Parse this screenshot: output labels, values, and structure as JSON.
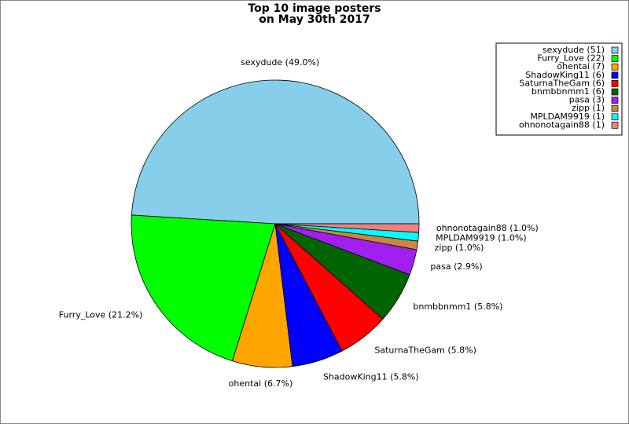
{
  "chart_data": {
    "type": "pie",
    "title": "Top 10 image posters",
    "subtitle": "on May 30th 2017",
    "categories": [
      "sexydude",
      "Furry_Love",
      "ohentai",
      "ShadowKing11",
      "SaturnaTheGam",
      "bnmbbnmm1",
      "pasa",
      "zipp",
      "MPLDAM9919",
      "ohnonotagain88"
    ],
    "values": [
      51,
      22,
      7,
      6,
      6,
      6,
      3,
      1,
      1,
      1
    ],
    "legend_labels": [
      "sexydude (51)",
      "Furry_Love (22)",
      "ohentai (7)",
      "ShadowKing11 (6)",
      "SaturnaTheGam (6)",
      "bnmbbnmm1 (6)",
      "pasa (3)",
      "zipp (1)",
      "MPLDAM9919 (1)",
      "ohnonotagain88 (1)"
    ],
    "percentages": [
      49.0,
      21.2,
      6.7,
      5.8,
      5.8,
      5.8,
      2.9,
      1.0,
      1.0,
      1.0
    ],
    "percentage_labels": [
      "sexydude (49.0%)",
      "Furry_Love (21.2%)",
      "ohentai (6.7%)",
      "ShadowKing11 (5.8%)",
      "SaturnaTheGam (5.8%)",
      "bnmbbnmm1 (5.8%)",
      "pasa (2.9%)",
      "zipp (1.0%)",
      "MPLDAM9919 (1.0%)",
      "ohnonotagain88 (1.0%)"
    ],
    "colors": [
      "#87ceeb",
      "#00ff00",
      "#ffa500",
      "#0000ff",
      "#ff0000",
      "#006400",
      "#a020f0",
      "#cd853f",
      "#00ffff",
      "#f08080"
    ],
    "legend": "upper right"
  }
}
